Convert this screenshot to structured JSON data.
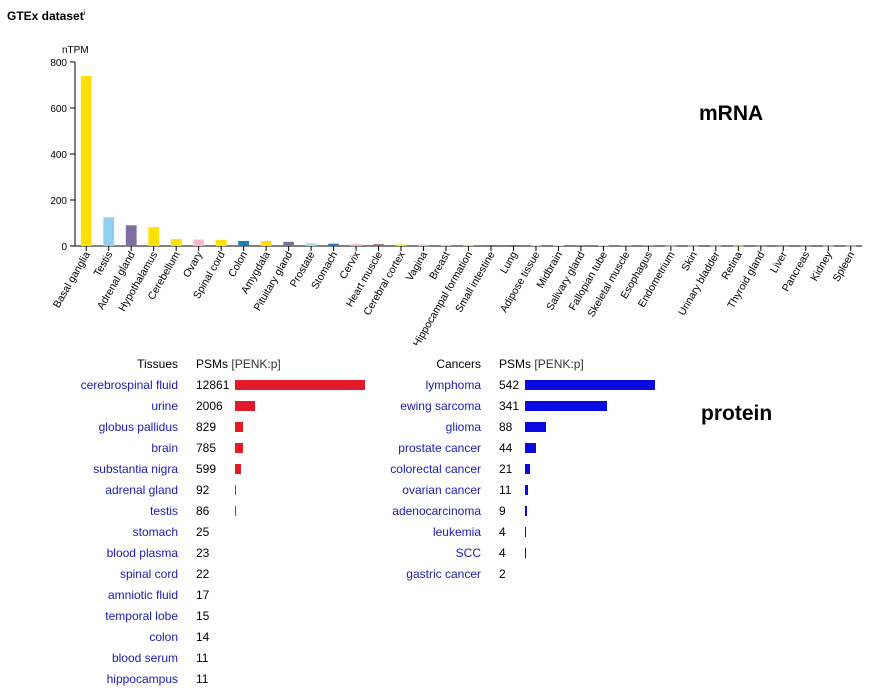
{
  "header": {
    "title": "GTEx dataset",
    "info_mark": "i"
  },
  "mrna_label": "mRNA",
  "protein_label": "protein",
  "colors": {
    "link": "#1a1ab8",
    "tissue_bar": "#e31a2a",
    "cancer_bar": "#0a0ae0"
  },
  "chart_data": {
    "type": "bar",
    "ylabel": "nTPM",
    "ylim": [
      0,
      800
    ],
    "yticks": [
      0,
      200,
      400,
      600,
      800
    ],
    "grid": false,
    "categories": [
      "Basal ganglia",
      "Testis",
      "Adrenal gland",
      "Hypothalamus",
      "Cerebellum",
      "Ovary",
      "Spinal cord",
      "Colon",
      "Amygdala",
      "Pituitary gland",
      "Prostate",
      "Stomach",
      "Cervix",
      "Heart muscle",
      "Cerebral cortex",
      "Vagina",
      "Breast",
      "Hippocampal formation",
      "Small intestine",
      "Lung",
      "Adipose tissue",
      "Midbrain",
      "Salivary gland",
      "Fallopian tube",
      "Skeletal muscle",
      "Esophagus",
      "Endometrium",
      "Skin",
      "Urinary bladder",
      "Retina",
      "Thyroid gland",
      "Liver",
      "Pancreas",
      "Kidney",
      "Spleen"
    ],
    "values": [
      740,
      125,
      90,
      82,
      30,
      28,
      26,
      22,
      22,
      18,
      12,
      10,
      8,
      8,
      7,
      6,
      5,
      5,
      4,
      4,
      3,
      3,
      3,
      2,
      2,
      2,
      1,
      1,
      1,
      1,
      1,
      1,
      1,
      1,
      1
    ],
    "colors": [
      "#ffe000",
      "#8fd0f0",
      "#7e6ea0",
      "#ffe000",
      "#ffe000",
      "#f4b8d0",
      "#ffe000",
      "#1f7bb0",
      "#ffe000",
      "#7e6ea0",
      "#a8d8ec",
      "#1f7bb0",
      "#f4b8d0",
      "#a06080",
      "#ffe000",
      "#f4b8d0",
      "#f4b8d0",
      "#ffe000",
      "#1f7bb0",
      "#1f7bb0",
      "#a8d8ec",
      "#ffe000",
      "#1f7bb0",
      "#f4b8d0",
      "#a06080",
      "#1f7bb0",
      "#f4b8d0",
      "#a8d8ec",
      "#a8d8ec",
      "#ffe000",
      "#7e6ea0",
      "#c06000",
      "#7e6ea0",
      "#a8d8ec",
      "#a8d8ec"
    ]
  },
  "tissues": {
    "header": "Tissues",
    "psm_header": "PSMs",
    "psm_sub": "[PENK:p]",
    "max": 12861,
    "rows": [
      {
        "name": "cerebrospinal fluid",
        "count": 12861
      },
      {
        "name": "urine",
        "count": 2006
      },
      {
        "name": "globus pallidus",
        "count": 829
      },
      {
        "name": "brain",
        "count": 785
      },
      {
        "name": "substantia nigra",
        "count": 599
      },
      {
        "name": "adrenal gland",
        "count": 92
      },
      {
        "name": "testis",
        "count": 86
      },
      {
        "name": "stomach",
        "count": 25
      },
      {
        "name": "blood plasma",
        "count": 23
      },
      {
        "name": "spinal cord",
        "count": 22
      },
      {
        "name": "amniotic fluid",
        "count": 17
      },
      {
        "name": "temporal lobe",
        "count": 15
      },
      {
        "name": "colon",
        "count": 14
      },
      {
        "name": "blood serum",
        "count": 11
      },
      {
        "name": "hippocampus",
        "count": 11
      }
    ]
  },
  "cancers": {
    "header": "Cancers",
    "psm_header": "PSMs",
    "psm_sub": "[PENK:p]",
    "max": 542,
    "rows": [
      {
        "name": "lymphoma",
        "count": 542
      },
      {
        "name": "ewing sarcoma",
        "count": 341
      },
      {
        "name": "glioma",
        "count": 88
      },
      {
        "name": "prostate cancer",
        "count": 44
      },
      {
        "name": "colorectal cancer",
        "count": 21
      },
      {
        "name": "ovarian cancer",
        "count": 11
      },
      {
        "name": "adenocarcinoma",
        "count": 9
      },
      {
        "name": "leukemia",
        "count": 4
      },
      {
        "name": "SCC",
        "count": 4
      },
      {
        "name": "gastric cancer",
        "count": 2
      }
    ]
  }
}
